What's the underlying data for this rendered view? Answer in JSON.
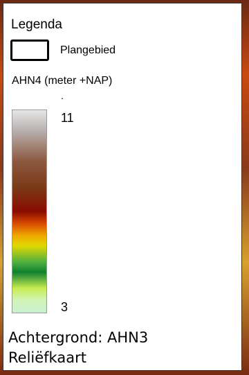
{
  "legend": {
    "title": "Legenda",
    "items": [
      {
        "label": "Plangebied"
      }
    ],
    "colorbar": {
      "title": "AHN4 (meter +NAP)",
      "note": ".",
      "max": 11,
      "min": 3
    },
    "footer": [
      "Achtergrond: AHN3",
      "Reliëfkaart"
    ]
  }
}
